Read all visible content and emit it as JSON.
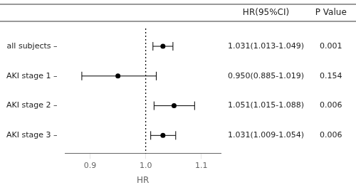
{
  "chart_data": {
    "type": "forest",
    "categories": [
      "all subjects –",
      "AKI stage 1 –",
      "AKI stage 2 –",
      "AKI stage 3 –"
    ],
    "values": [
      1.031,
      0.95,
      1.051,
      1.031
    ],
    "ci_low": [
      1.013,
      0.885,
      1.015,
      1.009
    ],
    "ci_high": [
      1.049,
      1.019,
      1.088,
      1.054
    ],
    "hr_labels": [
      "1.031(1.013-1.049)",
      "0.950(0.885-1.019)",
      "1.051(1.015-1.088)",
      "1.031(1.009-1.054)"
    ],
    "p_labels": [
      "0.001",
      "0.154",
      "0.006",
      "0.006"
    ],
    "column_titles": [
      "HR(95%CI)",
      "P Value"
    ],
    "xlim": [
      0.855,
      1.135
    ],
    "xticks": [
      0.9,
      {
        "value": 1.0,
        "label": "1.0"
      },
      1.1
    ],
    "xlabel": "HR",
    "ref_line": 1.0,
    "color": "#000000",
    "grid": false
  }
}
